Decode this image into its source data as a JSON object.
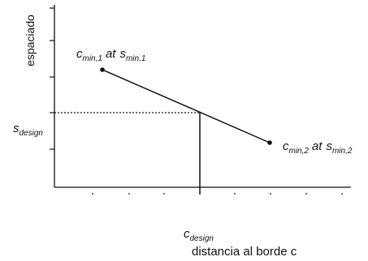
{
  "diagram": {
    "y_axis_label": "espaciado",
    "x_axis_label": "distancia al borde c",
    "s_design_label": {
      "main": "s",
      "sub": "design"
    },
    "c_design_label": {
      "main": "c",
      "sub": "design"
    },
    "point1_label": {
      "c": "c",
      "c_sub": "min,1",
      "at": "at",
      "s": "s",
      "s_sub": "min,1"
    },
    "point2_label": {
      "c": "c",
      "c_sub": "min,2",
      "at": "at",
      "s": "s",
      "s_sub": "min,2"
    }
  },
  "colors": {
    "line": "#111111",
    "background": "#ffffff"
  }
}
